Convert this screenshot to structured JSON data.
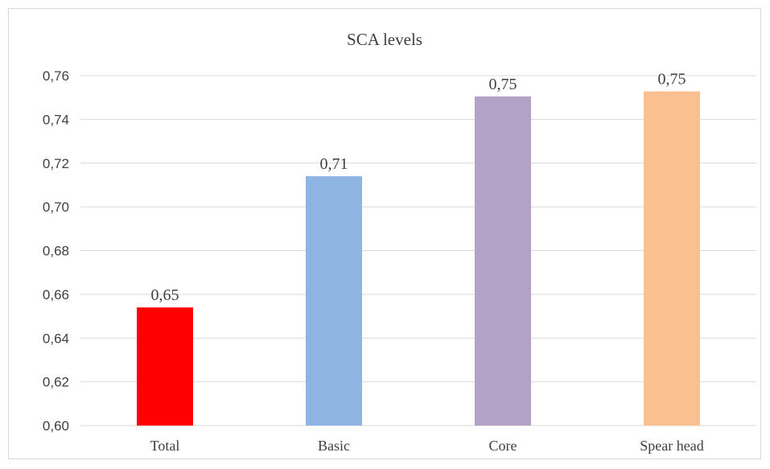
{
  "chart_data": {
    "type": "bar",
    "title": "SCA levels",
    "categories": [
      "Total",
      "Basic",
      "Core",
      "Spear head"
    ],
    "values": [
      0.654,
      0.714,
      0.7505,
      0.7528
    ],
    "data_labels": [
      "0,65",
      "0,71",
      "0,75",
      "0,75"
    ],
    "colors": [
      "#ff0000",
      "#8eb4e3",
      "#b3a2c7",
      "#fac090"
    ],
    "ylim": [
      0.6,
      0.76
    ],
    "yticks": [
      0.6,
      0.62,
      0.64,
      0.66,
      0.68,
      0.7,
      0.72,
      0.74,
      0.76
    ],
    "ytick_labels": [
      "0,60",
      "0,62",
      "0,64",
      "0,66",
      "0,68",
      "0,70",
      "0,72",
      "0,74",
      "0,76"
    ],
    "xlabel": "",
    "ylabel": "",
    "grid": true,
    "legend": "none"
  }
}
